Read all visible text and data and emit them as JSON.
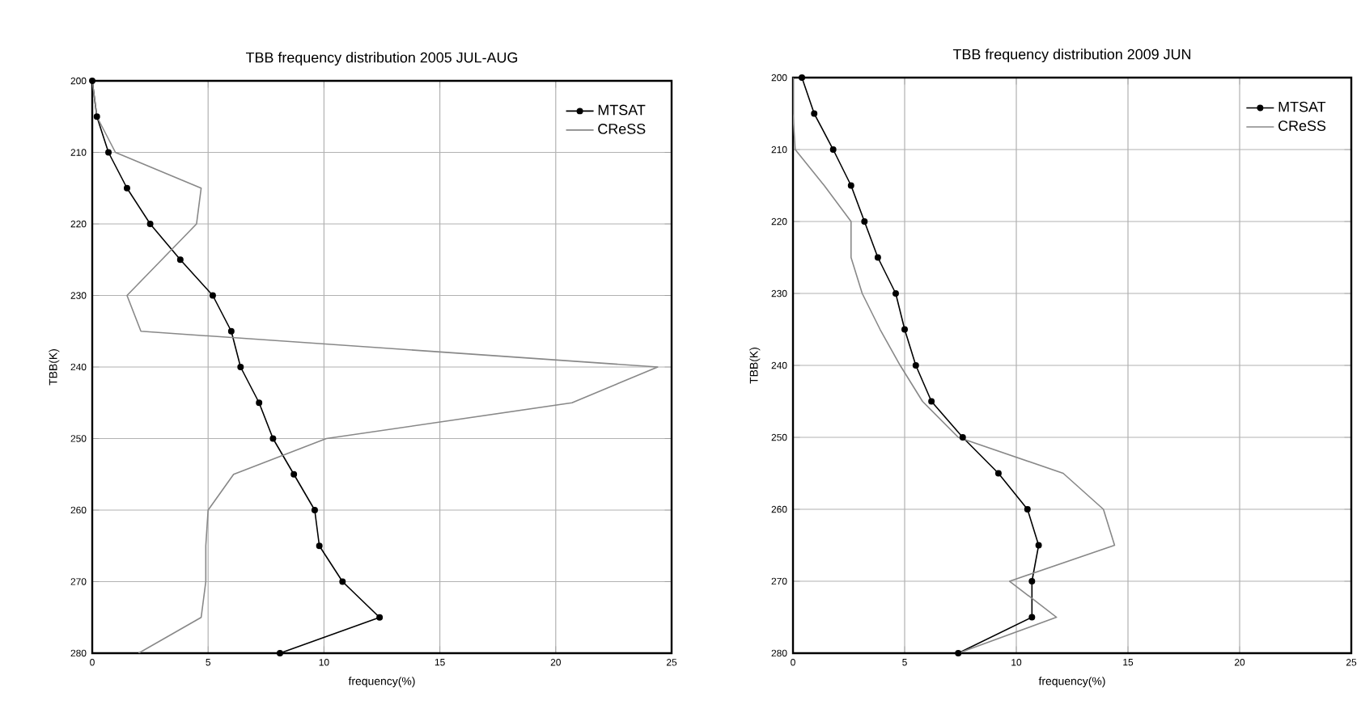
{
  "chart_data": [
    {
      "type": "line",
      "title": "TBB frequency distribution 2005 JUL-AUG",
      "xlabel": "frequency(%)",
      "ylabel": "TBB(K)",
      "xlim": [
        0,
        25
      ],
      "xticks": [
        0,
        5,
        10,
        15,
        20,
        25
      ],
      "ylim": [
        280,
        200
      ],
      "yticks": [
        200,
        210,
        220,
        230,
        240,
        250,
        260,
        270,
        280
      ],
      "grid": true,
      "legend": "top right",
      "series": [
        {
          "name": "MTSAT",
          "color": "#000000",
          "marker": "circle",
          "x": [
            0,
            0.2,
            0.7,
            1.5,
            2.5,
            3.8,
            5.2,
            6.0,
            6.4,
            7.2,
            7.8,
            8.7,
            9.6,
            9.8,
            10.8,
            12.4,
            8.1
          ],
          "values": [
            200,
            205,
            210,
            215,
            220,
            225,
            230,
            235,
            240,
            245,
            250,
            255,
            260,
            265,
            270,
            275,
            280
          ]
        },
        {
          "name": "CReSS",
          "color": "#888888",
          "marker": "none",
          "x": [
            0,
            0.2,
            1.0,
            4.7,
            4.5,
            3.0,
            1.5,
            2.1,
            24.4,
            20.7,
            10.1,
            6.1,
            5.0,
            4.9,
            4.9,
            4.7,
            2.0
          ],
          "values": [
            200,
            205,
            210,
            215,
            220,
            225,
            230,
            235,
            240,
            245,
            250,
            255,
            260,
            265,
            270,
            275,
            280
          ]
        }
      ]
    },
    {
      "type": "line",
      "title": "TBB frequency distribution 2009 JUN",
      "xlabel": "frequency(%)",
      "ylabel": "TBB(K)",
      "xlim": [
        0,
        25
      ],
      "xticks": [
        0,
        5,
        10,
        15,
        20,
        25
      ],
      "ylim": [
        280,
        200
      ],
      "yticks": [
        200,
        210,
        220,
        230,
        240,
        250,
        260,
        270,
        280
      ],
      "grid": true,
      "legend": "top right",
      "series": [
        {
          "name": "MTSAT",
          "color": "#000000",
          "marker": "circle",
          "x": [
            0.4,
            0.95,
            1.8,
            2.6,
            3.2,
            3.8,
            4.6,
            5.0,
            5.5,
            6.2,
            7.6,
            9.2,
            10.5,
            11.0,
            10.7,
            10.7,
            7.4
          ],
          "values": [
            200,
            205,
            210,
            215,
            220,
            225,
            230,
            235,
            240,
            245,
            250,
            255,
            260,
            265,
            270,
            275,
            280
          ]
        },
        {
          "name": "CReSS",
          "color": "#888888",
          "marker": "none",
          "x": [
            0,
            0,
            0.1,
            1.4,
            2.6,
            2.6,
            3.1,
            3.9,
            4.8,
            5.8,
            7.4,
            12.1,
            13.9,
            14.4,
            9.7,
            11.8,
            7.4
          ],
          "values": [
            200,
            205,
            210,
            215,
            220,
            225,
            230,
            235,
            240,
            245,
            250,
            255,
            260,
            265,
            270,
            275,
            280
          ]
        }
      ]
    }
  ]
}
